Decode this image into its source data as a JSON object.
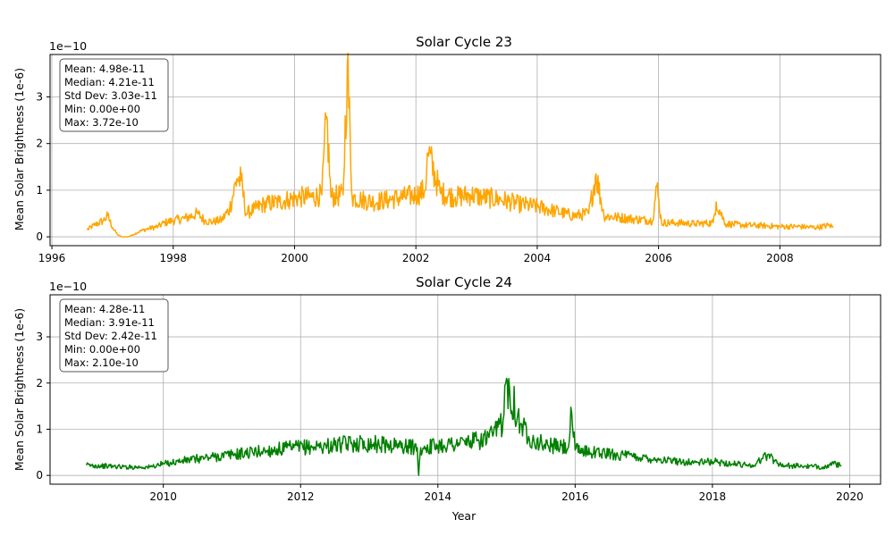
{
  "chart_data": [
    {
      "type": "line",
      "title": "Solar Cycle 23",
      "xlabel": "",
      "ylabel": "Mean Solar Brightness (1e-6)",
      "y_offset_label": "1e−10",
      "x_unit": "year",
      "xlim": [
        1995.97,
        2009.66
      ],
      "ylim": [
        -0.19,
        3.91
      ],
      "x_ticks": [
        1996,
        1998,
        2000,
        2002,
        2004,
        2006,
        2008
      ],
      "x_tick_labels": [
        "1996",
        "1998",
        "2000",
        "2002",
        "2004",
        "2006",
        "2008"
      ],
      "y_ticks": [
        0,
        1,
        2,
        3
      ],
      "y_tick_labels": [
        "0",
        "1",
        "2",
        "3"
      ],
      "grid": true,
      "color": "#ffa500",
      "stats": [
        "Mean: 4.98e-11",
        "Median: 4.21e-11",
        "Std Dev: 3.03e-11",
        "Min: 0.00e+00",
        "Max: 3.72e-10"
      ],
      "series": [
        {
          "values_scale": "1e-10",
          "x": [
            1996.58,
            1996.7,
            1996.85,
            1996.92,
            1997.0,
            1997.08,
            1997.15,
            1997.25,
            1997.35,
            1997.45,
            1997.6,
            1997.75,
            1997.85,
            1998.0,
            1998.2,
            1998.4,
            1998.52,
            1998.65,
            1998.8,
            1998.93,
            1999.05,
            1999.12,
            1999.2,
            1999.35,
            1999.5,
            1999.75,
            1999.9,
            2000.1,
            2000.3,
            2000.45,
            2000.53,
            2000.6,
            2000.8,
            2000.87,
            2000.95,
            2001.1,
            2001.3,
            2001.55,
            2001.8,
            2002.0,
            2002.15,
            2002.2,
            2002.4,
            2002.65,
            2002.9,
            2003.1,
            2003.4,
            2003.7,
            2004.0,
            2004.3,
            2004.6,
            2004.85,
            2004.97,
            2005.1,
            2005.3,
            2005.6,
            2005.9,
            2005.97,
            2006.05,
            2006.3,
            2006.6,
            2006.9,
            2006.95,
            2007.1,
            2007.4,
            2007.7,
            2008.0,
            2008.3,
            2008.6,
            2008.82,
            2008.88
          ],
          "values": [
            0.15,
            0.25,
            0.35,
            0.45,
            0.2,
            0.05,
            0.0,
            0.0,
            0.05,
            0.12,
            0.18,
            0.22,
            0.3,
            0.35,
            0.4,
            0.5,
            0.35,
            0.32,
            0.36,
            0.6,
            1.25,
            1.2,
            0.5,
            0.6,
            0.7,
            0.75,
            0.8,
            0.85,
            0.85,
            0.9,
            2.58,
            0.85,
            0.9,
            3.72,
            0.85,
            0.8,
            0.75,
            0.8,
            0.85,
            0.9,
            1.0,
            1.8,
            0.95,
            0.85,
            0.9,
            0.85,
            0.8,
            0.7,
            0.65,
            0.55,
            0.45,
            0.5,
            1.35,
            0.45,
            0.42,
            0.38,
            0.35,
            1.08,
            0.3,
            0.3,
            0.28,
            0.3,
            0.75,
            0.28,
            0.25,
            0.24,
            0.22,
            0.22,
            0.2,
            0.25,
            0.2
          ]
        }
      ]
    },
    {
      "type": "line",
      "title": "Solar Cycle 24",
      "xlabel": "Year",
      "ylabel": "Mean Solar Brightness (1e-6)",
      "y_offset_label": "1e−10",
      "x_unit": "year",
      "xlim": [
        2008.35,
        2020.45
      ],
      "ylim": [
        -0.19,
        3.91
      ],
      "x_ticks": [
        2010,
        2012,
        2014,
        2016,
        2018,
        2020
      ],
      "x_tick_labels": [
        "2010",
        "2012",
        "2014",
        "2016",
        "2018",
        "2020"
      ],
      "y_ticks": [
        0,
        1,
        2,
        3
      ],
      "y_tick_labels": [
        "0",
        "1",
        "2",
        "3"
      ],
      "grid": true,
      "color": "#008000",
      "stats": [
        "Mean: 4.28e-11",
        "Median: 3.91e-11",
        "Std Dev: 2.42e-11",
        "Min: 0.00e+00",
        "Max: 2.10e-10"
      ],
      "series": [
        {
          "values_scale": "1e-10",
          "x": [
            2008.88,
            2009.2,
            2009.5,
            2009.8,
            2010.0,
            2010.3,
            2010.6,
            2011.0,
            2011.3,
            2011.6,
            2011.9,
            2012.2,
            2012.5,
            2012.8,
            2013.1,
            2013.4,
            2013.7,
            2013.72,
            2013.75,
            2014.0,
            2014.3,
            2014.6,
            2014.8,
            2014.95,
            2015.0,
            2015.2,
            2015.4,
            2015.6,
            2015.9,
            2015.95,
            2016.0,
            2016.3,
            2016.6,
            2016.9,
            2017.2,
            2017.5,
            2017.8,
            2018.0,
            2018.3,
            2018.6,
            2018.8,
            2019.0,
            2019.3,
            2019.6,
            2019.8,
            2019.88
          ],
          "values": [
            0.22,
            0.2,
            0.18,
            0.18,
            0.25,
            0.32,
            0.38,
            0.45,
            0.5,
            0.55,
            0.6,
            0.62,
            0.65,
            0.7,
            0.68,
            0.65,
            0.6,
            0.0,
            0.6,
            0.65,
            0.7,
            0.75,
            0.85,
            1.2,
            2.1,
            1.1,
            0.75,
            0.65,
            0.6,
            1.35,
            0.55,
            0.5,
            0.45,
            0.4,
            0.35,
            0.3,
            0.28,
            0.3,
            0.25,
            0.22,
            0.45,
            0.22,
            0.2,
            0.18,
            0.25,
            0.2
          ]
        }
      ]
    }
  ]
}
